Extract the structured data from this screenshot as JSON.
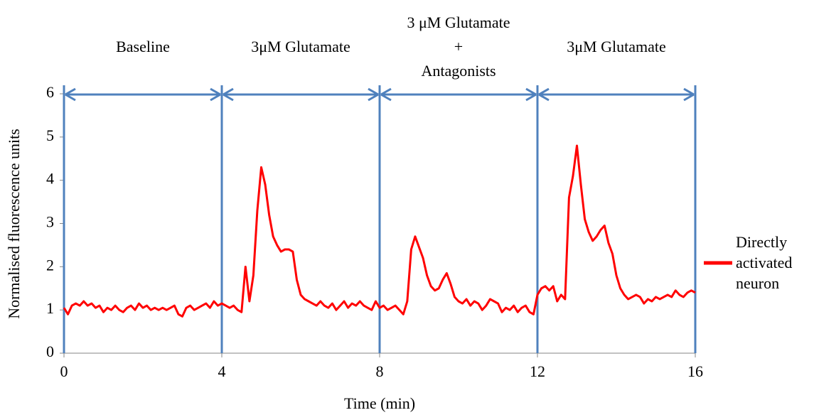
{
  "chart_data": {
    "type": "line",
    "xlabel": "Time (min)",
    "ylabel": "Normalised fluorescence units",
    "xlim": [
      0,
      16
    ],
    "xticks": [
      0,
      4,
      8,
      12,
      16
    ],
    "ylim": [
      0,
      6
    ],
    "yticks": [
      0,
      1,
      2,
      3,
      4,
      5,
      6
    ],
    "phases": [
      {
        "label": [
          "Baseline"
        ],
        "start": 0,
        "end": 4
      },
      {
        "label": [
          "3μM Glutamate"
        ],
        "start": 4,
        "end": 8
      },
      {
        "label": [
          "3 μM Glutamate",
          "+",
          "Antagonists"
        ],
        "start": 8,
        "end": 12
      },
      {
        "label": [
          "3μM Glutamate"
        ],
        "start": 12,
        "end": 16
      }
    ],
    "phase_color": "#4f81bd",
    "legend": "right",
    "x": [
      0,
      0.1,
      0.2,
      0.3,
      0.4,
      0.5,
      0.6,
      0.7,
      0.8,
      0.9,
      1,
      1.1,
      1.2,
      1.3,
      1.4,
      1.5,
      1.6,
      1.7,
      1.8,
      1.9,
      2,
      2.1,
      2.2,
      2.3,
      2.4,
      2.5,
      2.6,
      2.7,
      2.8,
      2.9,
      3,
      3.1,
      3.2,
      3.3,
      3.4,
      3.5,
      3.6,
      3.7,
      3.8,
      3.9,
      4,
      4.1,
      4.2,
      4.3,
      4.4,
      4.5,
      4.6,
      4.7,
      4.8,
      4.9,
      5,
      5.1,
      5.2,
      5.3,
      5.4,
      5.5,
      5.6,
      5.7,
      5.8,
      5.9,
      6,
      6.1,
      6.2,
      6.3,
      6.4,
      6.5,
      6.6,
      6.7,
      6.8,
      6.9,
      7,
      7.1,
      7.2,
      7.3,
      7.4,
      7.5,
      7.6,
      7.7,
      7.8,
      7.9,
      8,
      8.1,
      8.2,
      8.3,
      8.4,
      8.5,
      8.6,
      8.7,
      8.8,
      8.9,
      9,
      9.1,
      9.2,
      9.3,
      9.4,
      9.5,
      9.6,
      9.7,
      9.8,
      9.9,
      10,
      10.1,
      10.2,
      10.3,
      10.4,
      10.5,
      10.6,
      10.7,
      10.8,
      10.9,
      11,
      11.1,
      11.2,
      11.3,
      11.4,
      11.5,
      11.6,
      11.7,
      11.8,
      11.9,
      12,
      12.1,
      12.2,
      12.3,
      12.4,
      12.5,
      12.6,
      12.7,
      12.8,
      12.9,
      13,
      13.1,
      13.2,
      13.3,
      13.4,
      13.5,
      13.6,
      13.7,
      13.8,
      13.9,
      14,
      14.1,
      14.2,
      14.3,
      14.4,
      14.5,
      14.6,
      14.7,
      14.8,
      14.9,
      15,
      15.1,
      15.2,
      15.3,
      15.4,
      15.5,
      15.6,
      15.7,
      15.8,
      15.9,
      16
    ],
    "series": [
      {
        "name": "Directly activated neuron",
        "color": "#ff0000",
        "values": [
          1.05,
          0.9,
          1.1,
          1.15,
          1.1,
          1.2,
          1.1,
          1.15,
          1.05,
          1.1,
          0.95,
          1.05,
          1.0,
          1.1,
          1.0,
          0.95,
          1.05,
          1.1,
          1.0,
          1.15,
          1.05,
          1.1,
          1.0,
          1.05,
          1.0,
          1.05,
          1.0,
          1.05,
          1.1,
          0.9,
          0.85,
          1.05,
          1.1,
          1.0,
          1.05,
          1.1,
          1.15,
          1.05,
          1.2,
          1.1,
          1.15,
          1.1,
          1.05,
          1.1,
          1.0,
          0.95,
          2.0,
          1.2,
          1.8,
          3.3,
          4.3,
          3.9,
          3.2,
          2.7,
          2.5,
          2.35,
          2.4,
          2.4,
          2.35,
          1.7,
          1.35,
          1.25,
          1.2,
          1.15,
          1.1,
          1.2,
          1.1,
          1.05,
          1.15,
          1.0,
          1.1,
          1.2,
          1.05,
          1.15,
          1.1,
          1.2,
          1.1,
          1.05,
          1.0,
          1.2,
          1.05,
          1.1,
          1.0,
          1.05,
          1.1,
          1.0,
          0.9,
          1.2,
          2.4,
          2.7,
          2.45,
          2.2,
          1.8,
          1.55,
          1.45,
          1.5,
          1.7,
          1.85,
          1.6,
          1.3,
          1.2,
          1.15,
          1.25,
          1.1,
          1.2,
          1.15,
          1.0,
          1.1,
          1.25,
          1.2,
          1.15,
          0.95,
          1.05,
          1.0,
          1.1,
          0.95,
          1.05,
          1.1,
          0.95,
          0.9,
          1.35,
          1.5,
          1.55,
          1.45,
          1.55,
          1.2,
          1.35,
          1.25,
          3.6,
          4.1,
          4.8,
          3.9,
          3.1,
          2.8,
          2.6,
          2.7,
          2.85,
          2.95,
          2.55,
          2.3,
          1.8,
          1.5,
          1.35,
          1.25,
          1.3,
          1.35,
          1.3,
          1.15,
          1.25,
          1.2,
          1.3,
          1.25,
          1.3,
          1.35,
          1.3,
          1.45,
          1.35,
          1.3,
          1.4,
          1.45,
          1.4
        ]
      }
    ]
  }
}
